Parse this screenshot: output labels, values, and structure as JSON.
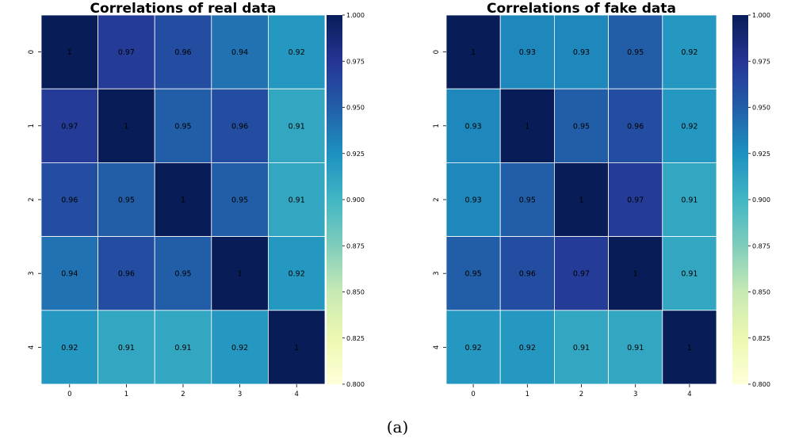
{
  "caption": "(a)",
  "colorscale": {
    "name": "YlGnBu",
    "stops": [
      "#ffffd9",
      "#edf8b1",
      "#c7e9b4",
      "#7fcdbb",
      "#41b6c4",
      "#1d91c0",
      "#225ea8",
      "#253494",
      "#081d58"
    ]
  },
  "chart_data": [
    {
      "type": "heatmap",
      "title": "Correlations of real data",
      "x_categories": [
        "0",
        "1",
        "2",
        "3",
        "4"
      ],
      "y_categories": [
        "0",
        "1",
        "2",
        "3",
        "4"
      ],
      "values": [
        [
          1,
          0.97,
          0.96,
          0.94,
          0.92
        ],
        [
          0.97,
          1,
          0.95,
          0.96,
          0.91
        ],
        [
          0.96,
          0.95,
          1,
          0.95,
          0.91
        ],
        [
          0.94,
          0.96,
          0.95,
          1,
          0.92
        ],
        [
          0.92,
          0.91,
          0.91,
          0.92,
          1
        ]
      ],
      "value_labels": [
        [
          "1",
          "0.97",
          "0.96",
          "0.94",
          "0.92"
        ],
        [
          "0.97",
          "1",
          "0.95",
          "0.96",
          "0.91"
        ],
        [
          "0.96",
          "0.95",
          "1",
          "0.95",
          "0.91"
        ],
        [
          "0.94",
          "0.96",
          "0.95",
          "1",
          "0.92"
        ],
        [
          "0.92",
          "0.91",
          "0.91",
          "0.92",
          "1"
        ]
      ],
      "colorbar": {
        "range": [
          0.8,
          1.0
        ],
        "ticks": [
          0.8,
          0.825,
          0.85,
          0.875,
          0.9,
          0.925,
          0.95,
          0.975,
          1.0
        ],
        "tick_labels": [
          "0.800",
          "0.825",
          "0.850",
          "0.875",
          "0.900",
          "0.925",
          "0.950",
          "0.975",
          "1.000"
        ]
      }
    },
    {
      "type": "heatmap",
      "title": "Correlations of fake data",
      "x_categories": [
        "0",
        "1",
        "2",
        "3",
        "4"
      ],
      "y_categories": [
        "0",
        "1",
        "2",
        "3",
        "4"
      ],
      "values": [
        [
          1,
          0.93,
          0.93,
          0.95,
          0.92
        ],
        [
          0.93,
          1,
          0.95,
          0.96,
          0.92
        ],
        [
          0.93,
          0.95,
          1,
          0.97,
          0.91
        ],
        [
          0.95,
          0.96,
          0.97,
          1,
          0.91
        ],
        [
          0.92,
          0.92,
          0.91,
          0.91,
          1
        ]
      ],
      "value_labels": [
        [
          "1",
          "0.93",
          "0.93",
          "0.95",
          "0.92"
        ],
        [
          "0.93",
          "1",
          "0.95",
          "0.96",
          "0.92"
        ],
        [
          "0.93",
          "0.95",
          "1",
          "0.97",
          "0.91"
        ],
        [
          "0.95",
          "0.96",
          "0.97",
          "1",
          "0.91"
        ],
        [
          "0.92",
          "0.92",
          "0.91",
          "0.91",
          "1"
        ]
      ],
      "colorbar": {
        "range": [
          0.8,
          1.0
        ],
        "ticks": [
          0.8,
          0.825,
          0.85,
          0.875,
          0.9,
          0.925,
          0.95,
          0.975,
          1.0
        ],
        "tick_labels": [
          "0.800",
          "0.825",
          "0.850",
          "0.875",
          "0.900",
          "0.925",
          "0.950",
          "0.975",
          "1.000"
        ]
      }
    }
  ]
}
